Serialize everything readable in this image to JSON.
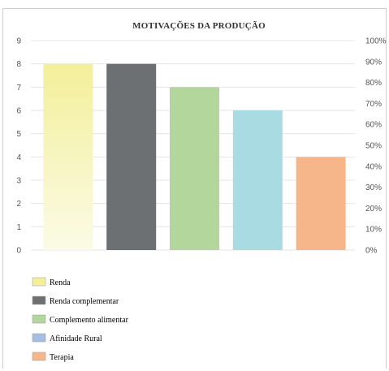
{
  "chart_data": {
    "type": "bar",
    "title": "MOTIVAÇÕES DA PRODUÇÃO",
    "xlabel": "",
    "ylabel": "",
    "ylim": [
      0,
      9
    ],
    "y2lim": [
      0,
      100
    ],
    "yticks": [
      "0",
      "1",
      "2",
      "3",
      "4",
      "5",
      "6",
      "7",
      "8",
      "9"
    ],
    "y2ticks": [
      "0%",
      "10%",
      "20%",
      "30%",
      "40%",
      "50%",
      "60%",
      "70%",
      "80%",
      "90%",
      "100%"
    ],
    "grid": true,
    "legend_position": "bottom-left",
    "series": [
      {
        "name": "Renda",
        "value": 8,
        "color": "#f3ef9a",
        "color_light": "#fbfbe6"
      },
      {
        "name": "Renda complementar",
        "value": 8,
        "color": "#6d7072"
      },
      {
        "name": "Complemento alimentar",
        "value": 7,
        "color": "#b3d69c"
      },
      {
        "name": "Afinidade Rural",
        "value": 6,
        "color": "#a9dbe3",
        "legend_color": "#a6bfe0"
      },
      {
        "name": "Terapia",
        "value": 4,
        "color": "#f7b68a"
      }
    ]
  }
}
